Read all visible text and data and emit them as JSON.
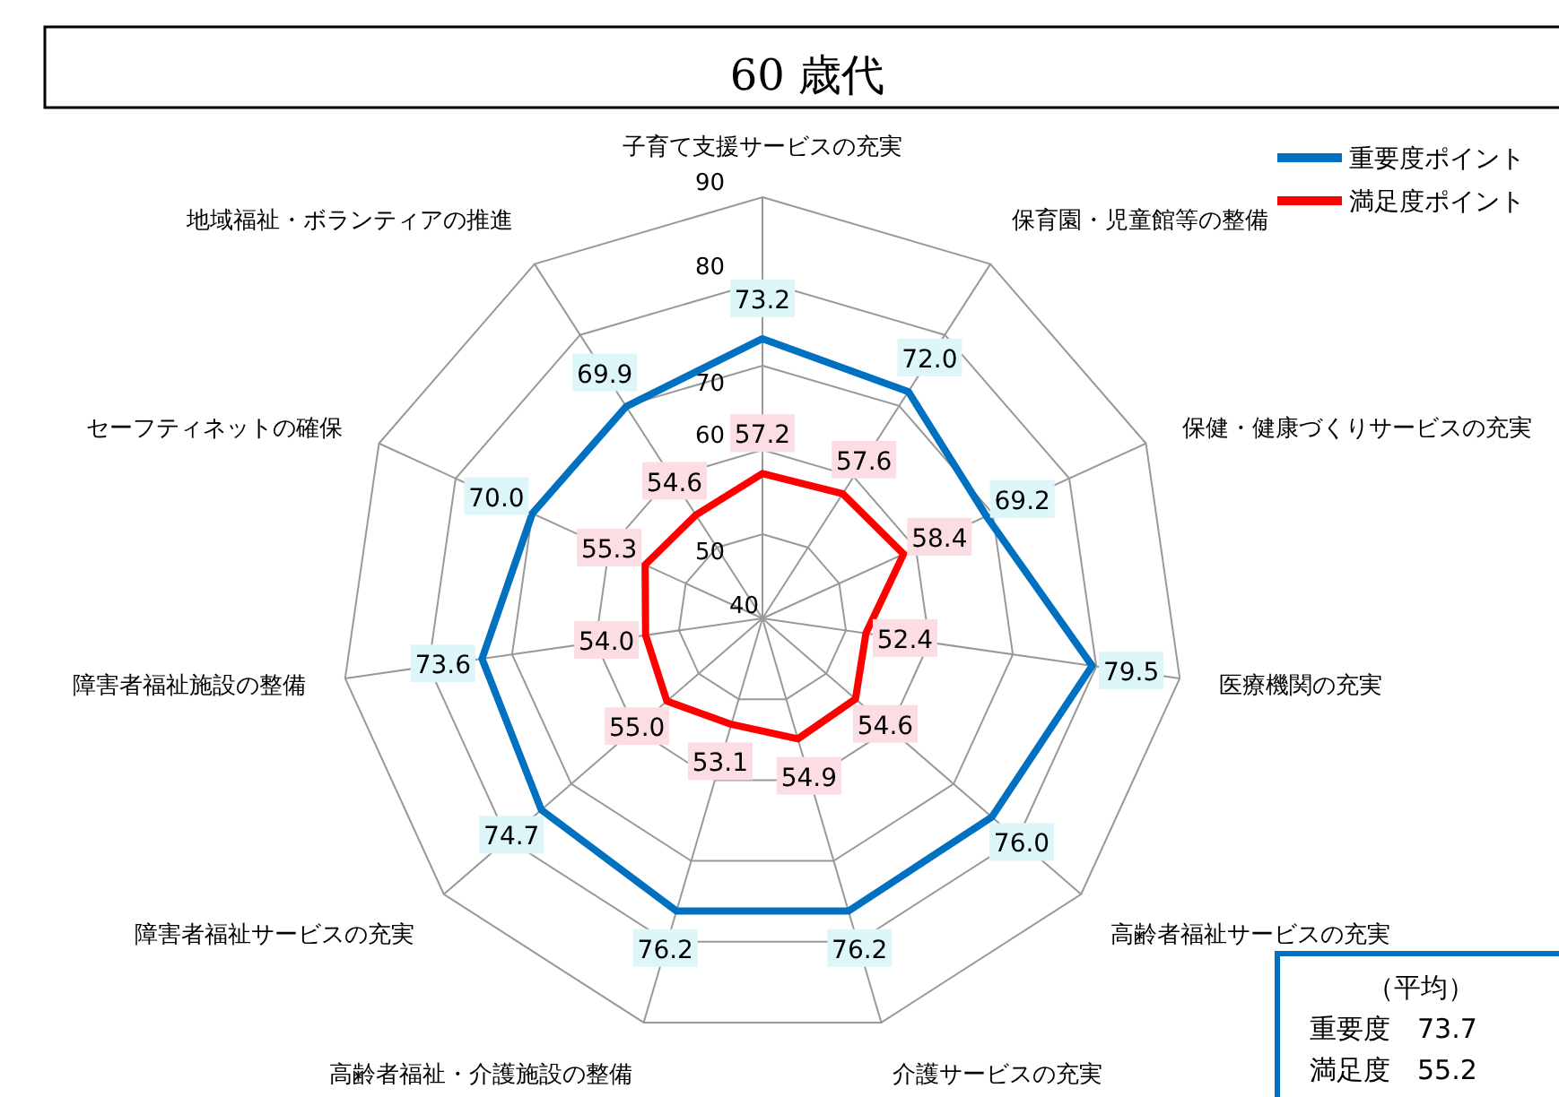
{
  "chart_data": {
    "type": "radar",
    "title": "60 歳代",
    "categories": [
      "子育て支援サービスの充実",
      "保育園・児童館等の整備",
      "保健・健康づくりサービスの充実",
      "医療機関の充実",
      "高齢者福祉サービスの充実",
      "介護サービスの充実",
      "高齢者福祉・介護施設の整備",
      "障害者福祉サービスの充実",
      "障害者福祉施設の整備",
      "セーフティネットの確保",
      "地域福祉・ボランティアの推進"
    ],
    "series": [
      {
        "name": "重要度ポイント",
        "color": "#0070c0",
        "values": [
          73.2,
          72.0,
          69.2,
          79.5,
          76.0,
          76.2,
          76.2,
          74.7,
          73.6,
          70.0,
          69.9
        ],
        "value_labels": [
          "73.2",
          "72.0",
          "69.2",
          "79.5",
          "76.0",
          "76.2",
          "76.2",
          "74.7",
          "73.6",
          "70.0",
          "69.9"
        ]
      },
      {
        "name": "満足度ポイント",
        "color": "#ff0000",
        "values": [
          57.2,
          57.6,
          58.4,
          52.4,
          54.6,
          54.9,
          53.1,
          55.0,
          54.0,
          55.3,
          54.6
        ],
        "value_labels": [
          "57.2",
          "57.6",
          "58.4",
          "52.4",
          "54.6",
          "54.9",
          "53.1",
          "55.0",
          "54.0",
          "55.3",
          "54.6"
        ]
      }
    ],
    "ylim": [
      40,
      90
    ],
    "yticks": [
      40,
      50,
      60,
      70,
      80,
      90
    ],
    "grid": true,
    "legend": "top right",
    "annotations": [
      "（平均）",
      "重要度　73.7",
      "満足度　55.2"
    ]
  }
}
